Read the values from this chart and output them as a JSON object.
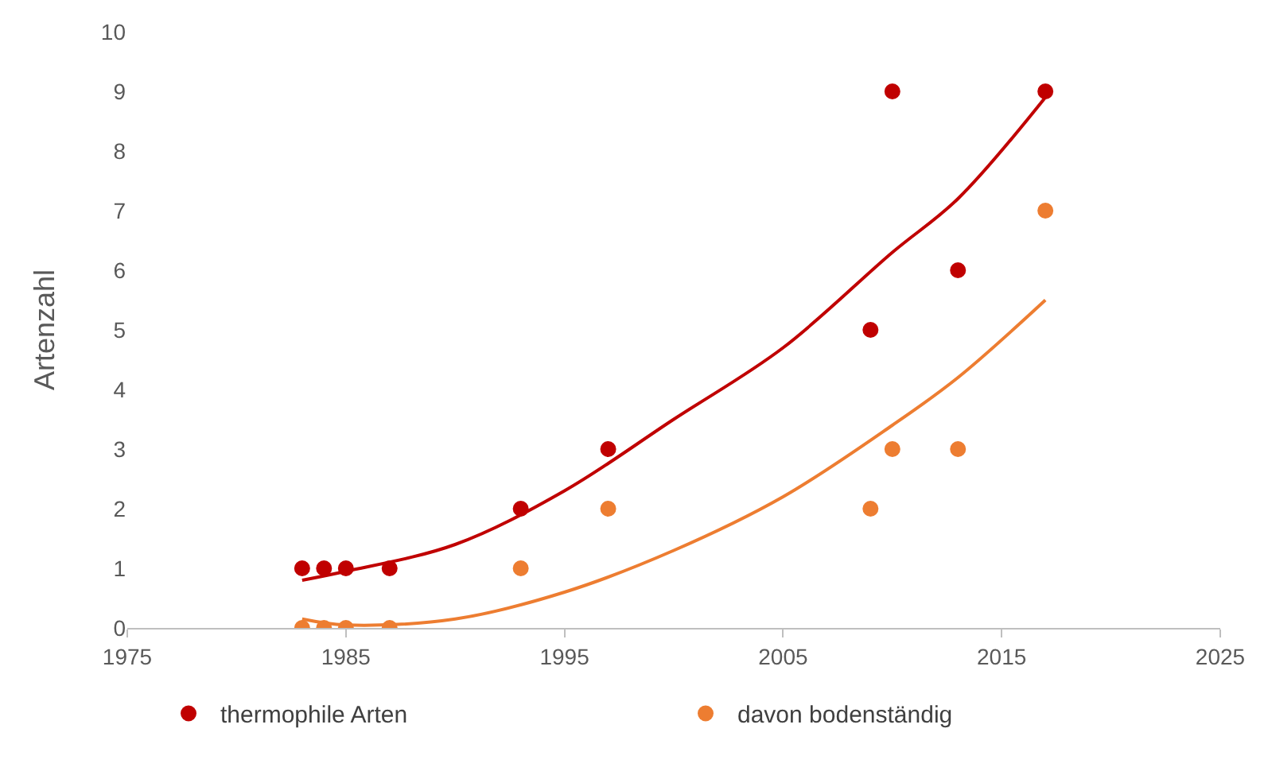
{
  "chart_data": {
    "type": "scatter",
    "ylabel": "Artenzahl",
    "xlim": [
      1975,
      2025
    ],
    "xticks": [
      1975,
      1985,
      1995,
      2005,
      2015,
      2025
    ],
    "ylim": [
      0,
      10
    ],
    "yticks": [
      0,
      1,
      2,
      3,
      4,
      5,
      6,
      7,
      8,
      9,
      10
    ],
    "grid": false,
    "legend": "bottom",
    "series": [
      {
        "name": "thermophile Arten",
        "marker": "circle",
        "color": "#c00000",
        "x": [
          1983,
          1984,
          1985,
          1987,
          1993,
          1997,
          2009,
          2010,
          2013,
          2017
        ],
        "values": [
          1,
          1,
          1,
          1,
          2,
          3,
          5,
          9,
          6,
          9
        ]
      },
      {
        "name": "davon bodenständig",
        "marker": "circle",
        "color": "#ed7d31",
        "x": [
          1983,
          1984,
          1985,
          1987,
          1993,
          1997,
          2009,
          2010,
          2013,
          2017
        ],
        "values": [
          0,
          0,
          0,
          0,
          1,
          2,
          2,
          3,
          3,
          7
        ]
      },
      {
        "type": "line",
        "marker": "none",
        "color": "#c00000",
        "x": [
          1983,
          1985,
          1990,
          1995,
          2000,
          2005,
          2010,
          2013,
          2017
        ],
        "values": [
          0.8,
          0.95,
          1.4,
          2.3,
          3.5,
          4.7,
          6.3,
          7.2,
          8.9
        ]
      },
      {
        "type": "line",
        "marker": "none",
        "color": "#ed7d31",
        "x": [
          1983,
          1985,
          1990,
          1995,
          2000,
          2005,
          2010,
          2013,
          2017
        ],
        "values": [
          0.15,
          0.05,
          0.15,
          0.6,
          1.3,
          2.2,
          3.4,
          4.2,
          5.5
        ]
      }
    ]
  }
}
